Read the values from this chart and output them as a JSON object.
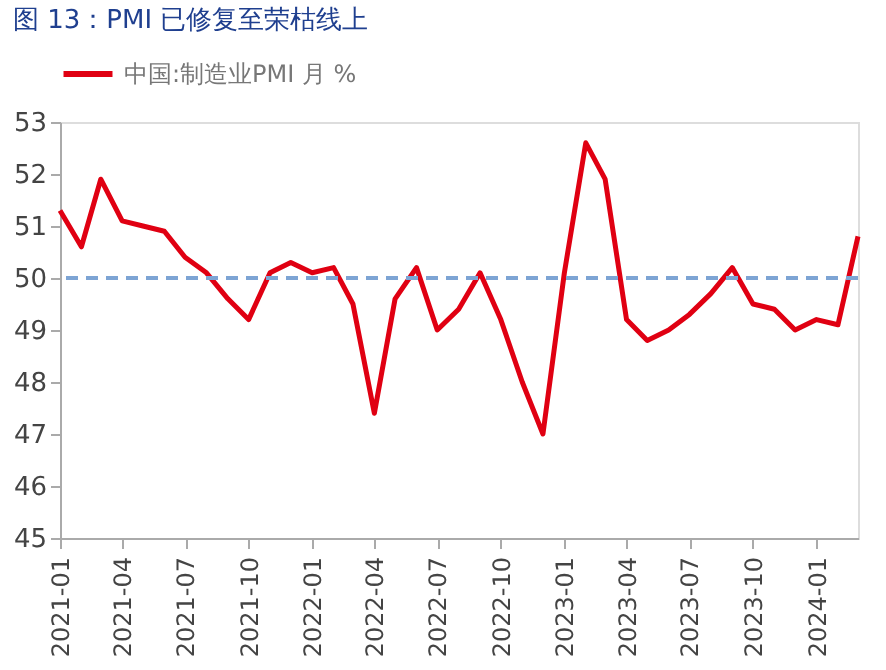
{
  "chart_data": {
    "type": "line",
    "title": "图 13：PMI 已修复至荣枯线上",
    "x": [
      "2021-01",
      "2021-02",
      "2021-03",
      "2021-04",
      "2021-05",
      "2021-06",
      "2021-07",
      "2021-08",
      "2021-09",
      "2021-10",
      "2021-11",
      "2021-12",
      "2022-01",
      "2022-02",
      "2022-03",
      "2022-04",
      "2022-05",
      "2022-06",
      "2022-07",
      "2022-08",
      "2022-09",
      "2022-10",
      "2022-11",
      "2022-12",
      "2023-01",
      "2023-02",
      "2023-03",
      "2023-04",
      "2023-05",
      "2023-06",
      "2023-07",
      "2023-08",
      "2023-09",
      "2023-10",
      "2023-11",
      "2023-12",
      "2024-01",
      "2024-02",
      "2024-03"
    ],
    "series": [
      {
        "name": "中国:制造业PMI 月 %",
        "color": "#e00012",
        "values": [
          51.3,
          50.6,
          51.9,
          51.1,
          51.0,
          50.9,
          50.4,
          50.1,
          49.6,
          49.2,
          50.1,
          50.3,
          50.1,
          50.2,
          49.5,
          47.4,
          49.6,
          50.2,
          49.0,
          49.4,
          50.1,
          49.2,
          48.0,
          47.0,
          50.1,
          52.6,
          51.9,
          49.2,
          48.8,
          49.0,
          49.3,
          49.7,
          50.2,
          49.5,
          49.4,
          49.0,
          49.2,
          49.1,
          50.8
        ]
      }
    ],
    "xlim": [
      "2021-01",
      "2024-03"
    ],
    "xticks": [
      "2021-01",
      "2021-04",
      "2021-07",
      "2021-10",
      "2022-01",
      "2022-04",
      "2022-07",
      "2022-10",
      "2023-01",
      "2023-04",
      "2023-07",
      "2023-10",
      "2024-01"
    ],
    "ylim": [
      45,
      53
    ],
    "yticks": [
      45,
      46,
      47,
      48,
      49,
      50,
      51,
      52,
      53
    ],
    "ref_lines": [
      {
        "axis": "y",
        "value": 50,
        "color": "#7da4d4",
        "line_style": "dashed"
      }
    ],
    "grid": false,
    "legend": "top",
    "marker": "none",
    "line_style": "solid"
  }
}
